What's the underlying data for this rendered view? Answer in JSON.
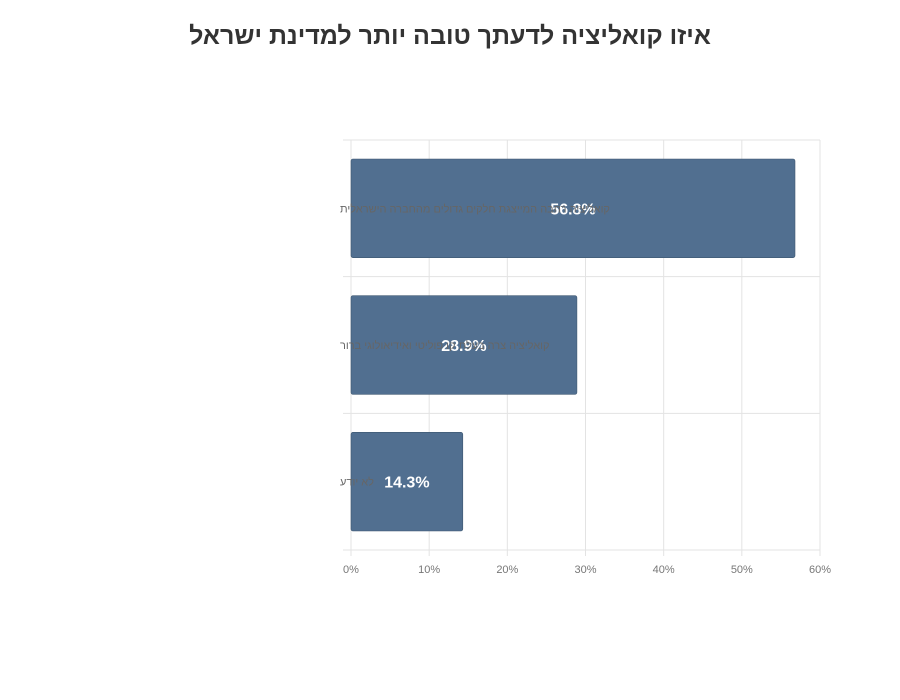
{
  "chart_data": {
    "type": "bar",
    "orientation": "horizontal",
    "title": "איזו קואליציה לדעתך טובה יותר למדינת ישראל",
    "categories": [
      "קואליציה רחבה המייצגת חלקים גדולים מהחברה הישראלית",
      "קואליציה צרה בעלת קו פוליטי ואידיאולוגי ברור",
      "לא יודע"
    ],
    "values": [
      56.8,
      28.9,
      14.3
    ],
    "data_labels": [
      "56.8%",
      "28.9%",
      "14.3%"
    ],
    "xlim": [
      0,
      60
    ],
    "x_ticks": [
      0,
      10,
      20,
      30,
      40,
      50,
      60
    ],
    "x_tick_labels": [
      "0%",
      "10%",
      "20%",
      "30%",
      "40%",
      "50%",
      "60%"
    ],
    "grid": true,
    "legend": "none",
    "bar_color": "#516f90",
    "bar_border_color": "#3e5770",
    "grid_color": "#e3e3e3"
  }
}
